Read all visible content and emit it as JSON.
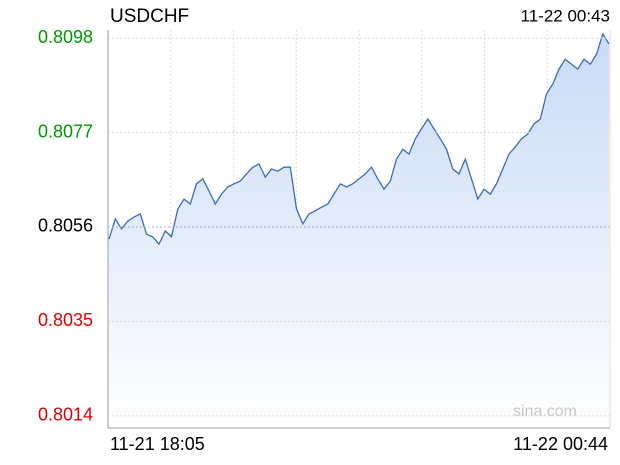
{
  "chart_data": {
    "type": "area",
    "title": "USDCHF",
    "timestamp": "11-22 00:43",
    "watermark": "sina.com",
    "categories": [
      "11-21 18:05",
      null,
      null,
      null,
      null,
      null,
      null,
      null,
      null,
      null,
      null,
      null,
      null,
      null,
      null,
      null,
      null,
      null,
      null,
      null,
      null,
      null,
      null,
      null,
      null,
      null,
      null,
      null,
      null,
      null,
      null,
      null,
      null,
      null,
      null,
      null,
      null,
      null,
      null,
      null,
      null,
      null,
      null,
      null,
      null,
      null,
      null,
      null,
      null,
      null,
      null,
      null,
      null,
      null,
      null,
      null,
      null,
      null,
      null,
      null,
      null,
      null,
      null,
      null,
      null,
      null,
      null,
      null,
      null,
      null,
      null,
      null,
      null,
      null,
      null,
      null,
      null,
      null,
      null,
      null,
      "11-22 00:44"
    ],
    "series": [
      {
        "name": "USDCHF",
        "color": "#3a6bc4",
        "values": [
          0.80533,
          0.80578,
          0.80556,
          0.80573,
          0.80582,
          0.80589,
          0.80544,
          0.80538,
          0.80522,
          0.80551,
          0.80538,
          0.806,
          0.80622,
          0.80611,
          0.80656,
          0.80667,
          0.8064,
          0.80611,
          0.80633,
          0.80649,
          0.80656,
          0.80662,
          0.80678,
          0.80693,
          0.807,
          0.80671,
          0.80689,
          0.80684,
          0.80693,
          0.80693,
          0.806,
          0.80567,
          0.80589,
          0.80596,
          0.80604,
          0.80611,
          0.80633,
          0.80656,
          0.80649,
          0.80656,
          0.80667,
          0.80678,
          0.80693,
          0.80667,
          0.80644,
          0.80662,
          0.80711,
          0.80733,
          0.80722,
          0.80756,
          0.80778,
          0.808,
          0.80778,
          0.80756,
          0.80733,
          0.80689,
          0.80678,
          0.80711,
          0.80667,
          0.80622,
          0.80644,
          0.80633,
          0.80656,
          0.80689,
          0.80722,
          0.80738,
          0.80756,
          0.80767,
          0.80789,
          0.808,
          0.80856,
          0.80878,
          0.80911,
          0.80933,
          0.80922,
          0.80911,
          0.80933,
          0.80922,
          0.80944,
          0.80989,
          0.80967
        ]
      }
    ],
    "ylim": [
      0.80113,
      0.80998
    ],
    "yticks": [
      0.8098,
      0.8077,
      0.8056,
      0.8035,
      0.8014
    ],
    "ytick_colors": [
      "#009900",
      "#009900",
      "#000000",
      "#dd0000",
      "#dd0000"
    ],
    "grid": true
  }
}
